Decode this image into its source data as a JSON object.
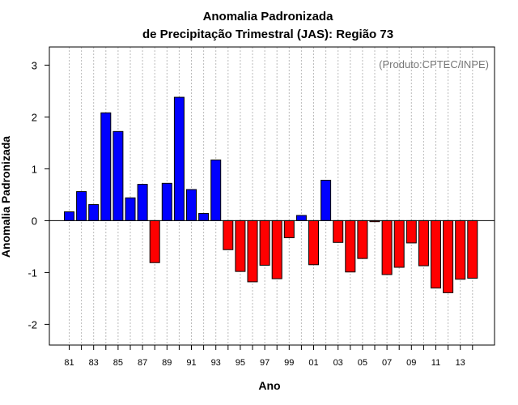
{
  "chart_data": {
    "type": "bar",
    "title_line1": "Anomalia Padronizada",
    "title_line2": "de Precipitação Trimestral (JAS): Região 73",
    "xlabel": "Ano",
    "ylabel": "Anomalia Padronizada",
    "credit": "(Produto:CPTEC/INPE)",
    "ylim": [
      -2.4,
      3.35
    ],
    "yticks": [
      -2,
      -1,
      0,
      1,
      2,
      3
    ],
    "ytick_labels": [
      "-2",
      "-1",
      "0",
      "1",
      "2",
      "3"
    ],
    "xtick_labels": [
      "81",
      "83",
      "85",
      "87",
      "89",
      "91",
      "93",
      "95",
      "97",
      "99",
      "01",
      "03",
      "05",
      "07",
      "09",
      "11",
      "13"
    ],
    "categories": [
      "1981",
      "1982",
      "1983",
      "1984",
      "1985",
      "1986",
      "1987",
      "1988",
      "1989",
      "1990",
      "1991",
      "1992",
      "1993",
      "1994",
      "1995",
      "1996",
      "1997",
      "1998",
      "1999",
      "2000",
      "2001",
      "2002",
      "2003",
      "2004",
      "2005",
      "2006",
      "2007",
      "2008",
      "2009",
      "2010",
      "2011",
      "2012",
      "2013",
      "2014"
    ],
    "values": [
      0.17,
      0.56,
      0.31,
      2.08,
      1.72,
      0.44,
      0.7,
      -0.81,
      0.72,
      2.38,
      0.6,
      0.14,
      1.17,
      -0.56,
      -0.98,
      -1.18,
      -0.86,
      -1.12,
      -0.33,
      0.1,
      -0.85,
      0.78,
      -0.42,
      -0.99,
      -0.73,
      -0.02,
      -1.04,
      -0.9,
      -0.43,
      -0.87,
      -1.3,
      -1.39,
      -1.13,
      -1.11
    ],
    "colors": {
      "positive": "#0000ff",
      "negative": "#ff0000",
      "grid": "#bbbbbb",
      "outline": "#000000"
    }
  }
}
